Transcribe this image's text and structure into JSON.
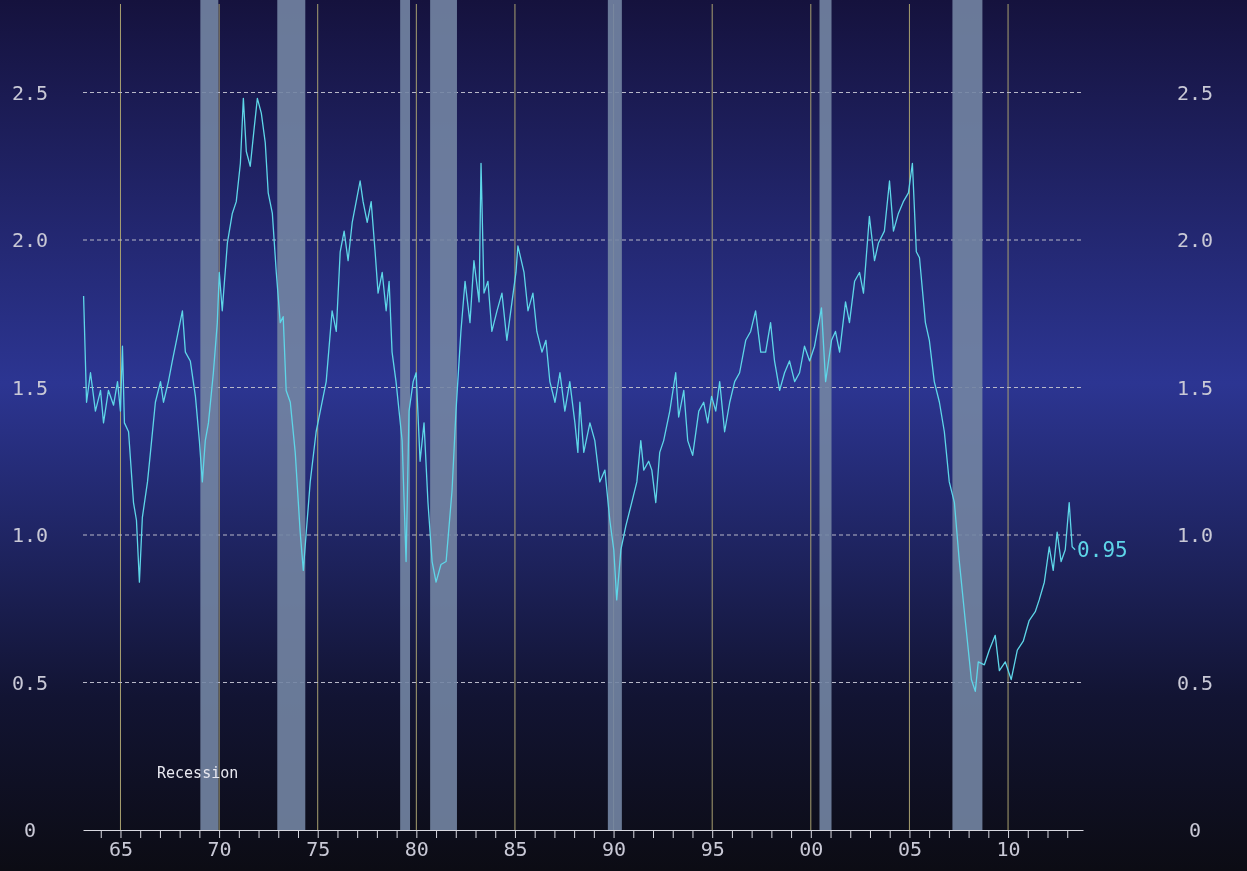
{
  "chart_data": {
    "type": "line",
    "x": [
      1963.13,
      1963.28,
      1963.48,
      1963.73,
      1963.99,
      1964.14,
      1964.39,
      1964.65,
      1964.85,
      1965.0,
      1965.1,
      1965.2,
      1965.41,
      1965.66,
      1965.81,
      1965.96,
      1966.11,
      1966.37,
      1966.52,
      1966.77,
      1967.03,
      1967.18,
      1967.43,
      1967.63,
      1967.84,
      1968.14,
      1968.29,
      1968.54,
      1968.8,
      1969.0,
      1969.15,
      1969.3,
      1969.46,
      1969.71,
      1969.91,
      1970.01,
      1970.16,
      1970.42,
      1970.67,
      1970.87,
      1971.08,
      1971.23,
      1971.38,
      1971.58,
      1971.78,
      1971.94,
      1972.14,
      1972.34,
      1972.49,
      1972.7,
      1972.9,
      1973.1,
      1973.25,
      1973.4,
      1973.61,
      1973.86,
      1974.11,
      1974.27,
      1974.42,
      1974.62,
      1974.92,
      1975.13,
      1975.43,
      1975.73,
      1975.94,
      1976.14,
      1976.34,
      1976.54,
      1976.75,
      1976.95,
      1977.15,
      1977.3,
      1977.51,
      1977.71,
      1977.91,
      1978.06,
      1978.27,
      1978.47,
      1978.62,
      1978.77,
      1978.97,
      1979.28,
      1979.48,
      1979.63,
      1979.84,
      1979.99,
      1980.19,
      1980.39,
      1980.59,
      1980.8,
      1981.0,
      1981.25,
      1981.51,
      1981.81,
      1982.01,
      1982.26,
      1982.47,
      1982.72,
      1982.92,
      1983.18,
      1983.28,
      1983.43,
      1983.63,
      1983.83,
      1984.09,
      1984.34,
      1984.59,
      1984.85,
      1985.05,
      1985.15,
      1985.46,
      1985.66,
      1985.91,
      1986.11,
      1986.37,
      1986.57,
      1986.77,
      1987.03,
      1987.28,
      1987.53,
      1987.78,
      1988.04,
      1988.19,
      1988.29,
      1988.49,
      1988.8,
      1989.05,
      1989.3,
      1989.56,
      1989.81,
      1990.01,
      1990.16,
      1990.37,
      1990.62,
      1990.92,
      1991.18,
      1991.38,
      1991.53,
      1991.78,
      1991.94,
      1992.14,
      1992.34,
      1992.54,
      1992.85,
      1993.15,
      1993.3,
      1993.56,
      1993.76,
      1994.01,
      1994.32,
      1994.57,
      1994.77,
      1994.97,
      1995.18,
      1995.38,
      1995.63,
      1995.89,
      1996.14,
      1996.39,
      1996.7,
      1996.95,
      1997.2,
      1997.46,
      1997.71,
      1997.96,
      1998.16,
      1998.42,
      1998.67,
      1998.92,
      1999.18,
      1999.43,
      1999.68,
      1999.94,
      2000.19,
      2000.54,
      2000.75,
      2001.05,
      2001.25,
      2001.46,
      2001.76,
      2001.96,
      2002.22,
      2002.47,
      2002.67,
      2002.97,
      2003.23,
      2003.43,
      2003.73,
      2003.99,
      2004.19,
      2004.44,
      2004.69,
      2004.95,
      2005.15,
      2005.35,
      2005.51,
      2005.81,
      2006.01,
      2006.26,
      2006.52,
      2006.77,
      2007.02,
      2007.28,
      2007.53,
      2007.83,
      2008.14,
      2008.34,
      2008.49,
      2008.8,
      2009.05,
      2009.35,
      2009.56,
      2009.86,
      2010.16,
      2010.47,
      2010.77,
      2011.07,
      2011.38,
      2011.58,
      2011.84,
      2012.09,
      2012.29,
      2012.49,
      2012.69,
      2012.9,
      2013.1,
      2013.25,
      2013.4
    ],
    "series": [
      {
        "color": "#5ed6e8",
        "values": [
          1.81,
          1.45,
          1.55,
          1.42,
          1.49,
          1.38,
          1.49,
          1.44,
          1.52,
          1.42,
          1.64,
          1.38,
          1.35,
          1.11,
          1.05,
          0.84,
          1.06,
          1.18,
          1.28,
          1.45,
          1.52,
          1.45,
          1.52,
          1.59,
          1.66,
          1.76,
          1.62,
          1.59,
          1.47,
          1.32,
          1.18,
          1.32,
          1.38,
          1.55,
          1.72,
          1.89,
          1.76,
          1.99,
          2.09,
          2.13,
          2.26,
          2.48,
          2.3,
          2.25,
          2.38,
          2.48,
          2.43,
          2.33,
          2.16,
          2.09,
          1.89,
          1.72,
          1.74,
          1.49,
          1.45,
          1.28,
          1.01,
          0.88,
          1.01,
          1.18,
          1.35,
          1.42,
          1.52,
          1.76,
          1.69,
          1.96,
          2.03,
          1.93,
          2.06,
          2.13,
          2.2,
          2.13,
          2.06,
          2.13,
          1.96,
          1.82,
          1.89,
          1.76,
          1.86,
          1.62,
          1.52,
          1.32,
          0.91,
          1.42,
          1.52,
          1.55,
          1.25,
          1.38,
          1.11,
          0.91,
          0.84,
          0.9,
          0.91,
          1.15,
          1.42,
          1.69,
          1.86,
          1.72,
          1.93,
          1.79,
          2.26,
          1.82,
          1.86,
          1.69,
          1.76,
          1.82,
          1.66,
          1.79,
          1.89,
          1.98,
          1.89,
          1.76,
          1.82,
          1.69,
          1.62,
          1.66,
          1.52,
          1.45,
          1.55,
          1.42,
          1.52,
          1.38,
          1.28,
          1.45,
          1.28,
          1.38,
          1.32,
          1.18,
          1.22,
          1.05,
          0.95,
          0.78,
          0.95,
          1.03,
          1.11,
          1.18,
          1.32,
          1.22,
          1.25,
          1.22,
          1.11,
          1.28,
          1.32,
          1.42,
          1.55,
          1.4,
          1.49,
          1.32,
          1.27,
          1.42,
          1.45,
          1.38,
          1.47,
          1.42,
          1.52,
          1.35,
          1.45,
          1.52,
          1.55,
          1.66,
          1.69,
          1.76,
          1.62,
          1.62,
          1.72,
          1.59,
          1.49,
          1.55,
          1.59,
          1.52,
          1.55,
          1.64,
          1.59,
          1.64,
          1.77,
          1.52,
          1.66,
          1.69,
          1.62,
          1.79,
          1.72,
          1.86,
          1.89,
          1.82,
          2.08,
          1.93,
          1.99,
          2.03,
          2.2,
          2.03,
          2.09,
          2.13,
          2.16,
          2.26,
          1.96,
          1.94,
          1.72,
          1.66,
          1.52,
          1.45,
          1.35,
          1.18,
          1.11,
          0.91,
          0.71,
          0.51,
          0.47,
          0.57,
          0.56,
          0.61,
          0.66,
          0.54,
          0.57,
          0.51,
          0.61,
          0.64,
          0.71,
          0.74,
          0.78,
          0.84,
          0.96,
          0.88,
          1.01,
          0.91,
          0.95,
          1.11,
          0.96,
          0.95
        ]
      }
    ],
    "xlim": [
      1963.1,
      2013.8
    ],
    "xticks": [
      {
        "value": 1964,
        "label": null
      },
      {
        "value": 1965,
        "label": "65"
      },
      {
        "value": 1966,
        "label": null
      },
      {
        "value": 1967,
        "label": null
      },
      {
        "value": 1968,
        "label": null
      },
      {
        "value": 1969,
        "label": null
      },
      {
        "value": 1970,
        "label": "70"
      },
      {
        "value": 1971,
        "label": null
      },
      {
        "value": 1972,
        "label": null
      },
      {
        "value": 1973,
        "label": null
      },
      {
        "value": 1974,
        "label": null
      },
      {
        "value": 1975,
        "label": "75"
      },
      {
        "value": 1976,
        "label": null
      },
      {
        "value": 1977,
        "label": null
      },
      {
        "value": 1978,
        "label": null
      },
      {
        "value": 1979,
        "label": null
      },
      {
        "value": 1980,
        "label": "80"
      },
      {
        "value": 1981,
        "label": null
      },
      {
        "value": 1982,
        "label": null
      },
      {
        "value": 1983,
        "label": null
      },
      {
        "value": 1984,
        "label": null
      },
      {
        "value": 1985,
        "label": "85"
      },
      {
        "value": 1986,
        "label": null
      },
      {
        "value": 1987,
        "label": null
      },
      {
        "value": 1988,
        "label": null
      },
      {
        "value": 1989,
        "label": null
      },
      {
        "value": 1990,
        "label": "90"
      },
      {
        "value": 1991,
        "label": null
      },
      {
        "value": 1992,
        "label": null
      },
      {
        "value": 1993,
        "label": null
      },
      {
        "value": 1994,
        "label": null
      },
      {
        "value": 1995,
        "label": "95"
      },
      {
        "value": 1996,
        "label": null
      },
      {
        "value": 1997,
        "label": null
      },
      {
        "value": 1998,
        "label": null
      },
      {
        "value": 1999,
        "label": null
      },
      {
        "value": 2000,
        "label": "00"
      },
      {
        "value": 2001,
        "label": null
      },
      {
        "value": 2002,
        "label": null
      },
      {
        "value": 2003,
        "label": null
      },
      {
        "value": 2004,
        "label": null
      },
      {
        "value": 2005,
        "label": "05"
      },
      {
        "value": 2006,
        "label": null
      },
      {
        "value": 2007,
        "label": null
      },
      {
        "value": 2008,
        "label": null
      },
      {
        "value": 2009,
        "label": null
      },
      {
        "value": 2010,
        "label": "10"
      },
      {
        "value": 2011,
        "label": null
      },
      {
        "value": 2012,
        "label": null
      },
      {
        "value": 2013,
        "label": null
      }
    ],
    "ylim": [
      0,
      2.8
    ],
    "yticks": [
      0,
      0.5,
      {
        "value": 1,
        "label": "1.0"
      },
      1.5,
      {
        "value": 2,
        "label": "2.0"
      },
      2.5
    ],
    "y2lim": [
      0,
      2.8
    ],
    "y2ticks": [
      0,
      0.5,
      {
        "value": 1,
        "label": "1.0"
      },
      1.5,
      {
        "value": 2,
        "label": "2.0"
      },
      2.5
    ],
    "grid": true,
    "bands": [
      {
        "axis": "x",
        "from": 1969.05,
        "to": 1969.96,
        "color": "#7385a3"
      },
      {
        "axis": "x",
        "from": 1972.95,
        "to": 1974.37,
        "color": "#7385a3"
      },
      {
        "axis": "x",
        "from": 1979.18,
        "to": 1979.68,
        "color": "#7385a3"
      },
      {
        "axis": "x",
        "from": 1980.7,
        "to": 1982.06,
        "color": "#7385a3"
      },
      {
        "axis": "x",
        "from": 1989.71,
        "to": 1990.42,
        "color": "#7385a3"
      },
      {
        "axis": "x",
        "from": 2000.44,
        "to": 2001.05,
        "color": "#7385a3"
      },
      {
        "axis": "x",
        "from": 2007.18,
        "to": 2008.7,
        "color": "#7385a3"
      }
    ],
    "annotations": [
      "Recession",
      {
        "text": "0.95",
        "x": 2013.4,
        "y": 0.95
      }
    ]
  }
}
